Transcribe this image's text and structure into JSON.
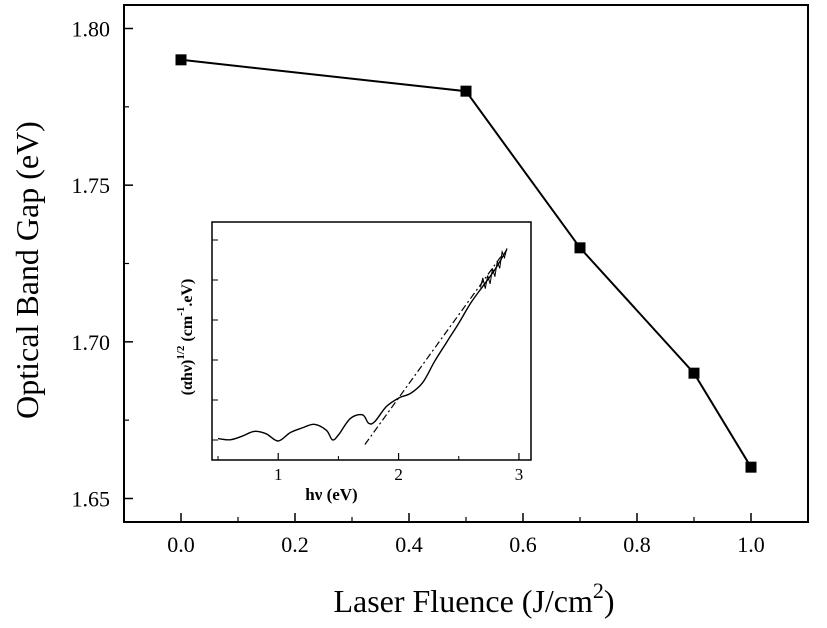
{
  "chart_data": [
    {
      "type": "line",
      "title": "",
      "xlabel": "Laser Fluence (J/cm",
      "xlabel_sup": "2",
      "xlabel_end": ")",
      "ylabel": "Optical Band Gap (eV)",
      "xlim": [
        -0.1,
        1.1
      ],
      "ylim": [
        1.6425,
        1.8075
      ],
      "xticks": [
        "0.0",
        "0.2",
        "0.4",
        "0.6",
        "0.8",
        "1.0"
      ],
      "yticks": [
        "1.65",
        "1.70",
        "1.75",
        "1.80"
      ],
      "grid": false,
      "legend": "none",
      "marker": "square",
      "series": [
        {
          "x": [
            0.0,
            0.5,
            0.7,
            0.9,
            1.0
          ],
          "y": [
            1.79,
            1.78,
            1.73,
            1.69,
            1.66
          ]
        }
      ]
    },
    {
      "type": "line",
      "title": "",
      "xlabel": "hν (eV)",
      "ylabel_pre": "(αhν)",
      "ylabel_sup1": "1/2",
      "ylabel_mid": " (cm",
      "ylabel_sup2": "-1",
      "ylabel_end": ".eV)",
      "xlim": [
        0.45,
        3.1
      ],
      "xticks": [
        "1",
        "2",
        "3"
      ],
      "yticks_labeled": false,
      "series": [
        {
          "style": "solid",
          "x": [
            0.5,
            0.6,
            0.7,
            0.8,
            0.9,
            1.0,
            1.1,
            1.2,
            1.3,
            1.4,
            1.45,
            1.5,
            1.6,
            1.7,
            1.75,
            1.8,
            1.9,
            2.0,
            2.1,
            2.2,
            2.3,
            2.4,
            2.5,
            2.6,
            2.7,
            2.8,
            2.9
          ],
          "y": [
            0.3,
            0.2,
            0.5,
            0.9,
            0.7,
            0.1,
            0.8,
            1.2,
            1.5,
            1.0,
            0.2,
            0.6,
            2.0,
            2.3,
            1.6,
            1.7,
            3.0,
            3.7,
            4.1,
            5.0,
            6.8,
            8.4,
            10.0,
            11.7,
            13.1,
            14.5,
            16.2
          ]
        },
        {
          "style": "dash-dot",
          "x": [
            1.72,
            2.85
          ],
          "y": [
            -0.2,
            15.6
          ]
        }
      ]
    }
  ]
}
